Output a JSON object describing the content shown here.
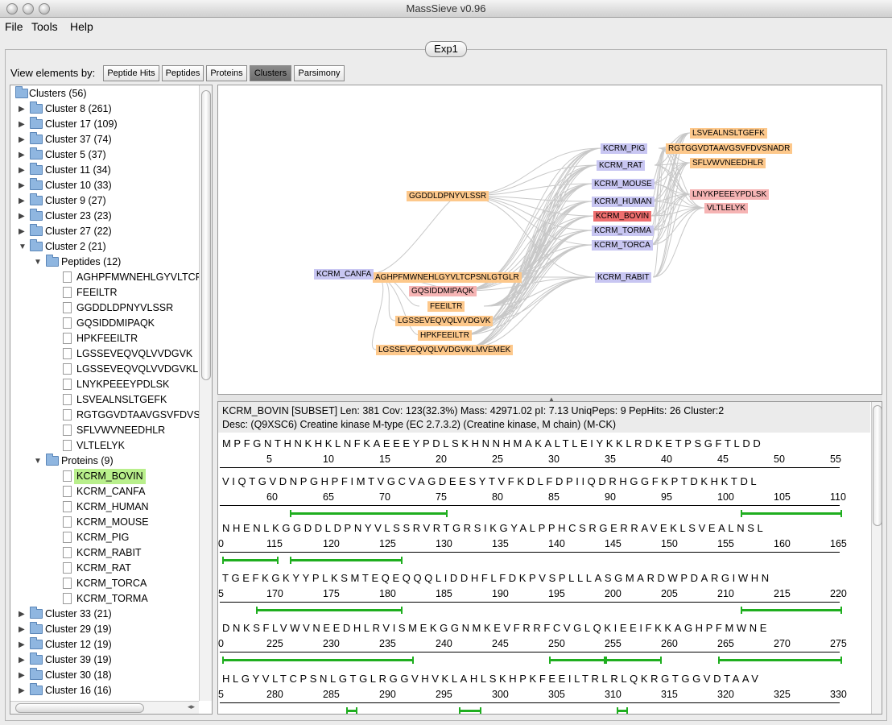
{
  "window": {
    "title": "MassSieve v0.96"
  },
  "menu": [
    "File",
    "Tools",
    "Help"
  ],
  "experiment_tab": "Exp1",
  "view_by": {
    "label": "View elements by:",
    "buttons": [
      "Peptide Hits",
      "Peptides",
      "Proteins",
      "Clusters",
      "Parsimony"
    ],
    "active": "Clusters"
  },
  "tree": {
    "root": "Clusters (56)",
    "clusters_before": [
      "Cluster 8 (261)",
      "Cluster 17 (109)",
      "Cluster 37 (74)",
      "Cluster 5 (37)",
      "Cluster 11 (34)",
      "Cluster 10 (33)",
      "Cluster 9 (27)",
      "Cluster 23 (23)",
      "Cluster 27 (22)"
    ],
    "expanded_cluster": "Cluster 2 (21)",
    "peptides_folder": "Peptides (12)",
    "peptides": [
      "AGHPFMWNEHLGYVLTCPSN",
      "FEEILTR",
      "GGDDLDPNYVLSSR",
      "GQSIDDMIPAQK",
      "HPKFEEILTR",
      "LGSSEVEQVQLVVDGVK",
      "LGSSEVEQVQLVVDGVKLMV",
      "LNYKPEEEYPDLSK",
      "LSVEALNSLTGEFK",
      "RGTGGVDTAAVGSVFDVSNA",
      "SFLVWVNEEDHLR",
      "VLTLELYK"
    ],
    "proteins_folder": "Proteins (9)",
    "proteins": [
      "KCRM_BOVIN",
      "KCRM_CANFA",
      "KCRM_HUMAN",
      "KCRM_MOUSE",
      "KCRM_PIG",
      "KCRM_RABIT",
      "KCRM_RAT",
      "KCRM_TORCA",
      "KCRM_TORMA"
    ],
    "selected_protein": "KCRM_BOVIN",
    "clusters_after": [
      "Cluster 33 (21)",
      "Cluster 29 (19)",
      "Cluster 12 (19)",
      "Cluster 39 (19)",
      "Cluster 30 (18)",
      "Cluster 16 (16)"
    ]
  },
  "graph": {
    "peptide_nodes": [
      "LSVEALNSLTGEFK",
      "RGTGGVDTAAVGSVFDVSNADR",
      "SFLVWVNEEDHLR",
      "GGDDLDPNYVLSSR",
      "AGHPFMWNEHLGYVLTCPSNLGTGLR",
      "FEEILTR",
      "LGSSEVEQVQLVVDGVK",
      "HPKFEEILTR",
      "LGSSEVEQVQLVVDGVKLMVEMEK"
    ],
    "unique_peptide_nodes": [
      "LNYKPEEEYPDLSK",
      "VLTLELYK",
      "GQSIDDMIPAQK"
    ],
    "protein_nodes": [
      "KCRM_PIG",
      "KCRM_RAT",
      "KCRM_MOUSE",
      "KCRM_HUMAN",
      "KCRM_TORMA",
      "KCRM_TORCA",
      "KCRM_CANFA",
      "KCRM_RABIT"
    ],
    "focus_node": "KCRM_BOVIN",
    "colors": {
      "peptide": "#fdc88b",
      "protein": "#c8c6f2",
      "unique": "#f6b4b4",
      "focus": "#ee6e6e",
      "edge": "#c8c8c8"
    }
  },
  "detail": {
    "header": "KCRM_BOVIN [SUBSET] Len: 381 Cov: 123(32.3%) Mass: 42971.02 pI: 7.13 UniqPeps: 9 PepHits: 26 Cluster:2",
    "desc": "Desc: (Q9XSC6) Creatine kinase M-type (EC 2.7.3.2) (Creatine kinase, M chain) (M-CK)",
    "rows": [
      {
        "seq": "MPFGNTHNKHKLNFKAEEEYPDLSKHNNHMAKALTLEIYKKLRDKETPSGFTLDD",
        "nums": "5 10 15 20 25 30 35 40 45 50 55"
      },
      {
        "seq": "VIQTGVDNPGHPFIMTVGCVAGDEESYTVFKDLFDPIIQDRHGGFKPTDKHKTDL",
        "nums": "60 65 70 75 80 85 90 95 100 105 110"
      },
      {
        "seq": "NHENLKGGDDLDPNYVLSSRVRTGRSIKGYALPPHCSRGERRAVEKLSVEALNSL",
        "nums": "0 115 120 125 130 135 140 145 150 155 160 165"
      },
      {
        "seq": "TGEFKGKYYPLKSMTEQEQQQLIDDHFLFDKPVSPLLLASGMARDWPDARGIWHN",
        "nums": "5 170 175 180 185 190 195 200 205 210 215 220"
      },
      {
        "seq": "DNKSFLVWVNEEDHLRVISMEKGGNMKEVFRRFCVGLQKIEEIFKKAGHPFMWNE",
        "nums": "0 225 230 235 240 245 250 255 260 265 270 275"
      },
      {
        "seq": "HLGYVLTCPSNLGTGLRGGVHVKLAHLSKHPKFEEILTRLRLQKRGTGGVDTAAV",
        "nums": "5 280 285 290 295 300 305 310 315 320 325 330"
      }
    ]
  }
}
